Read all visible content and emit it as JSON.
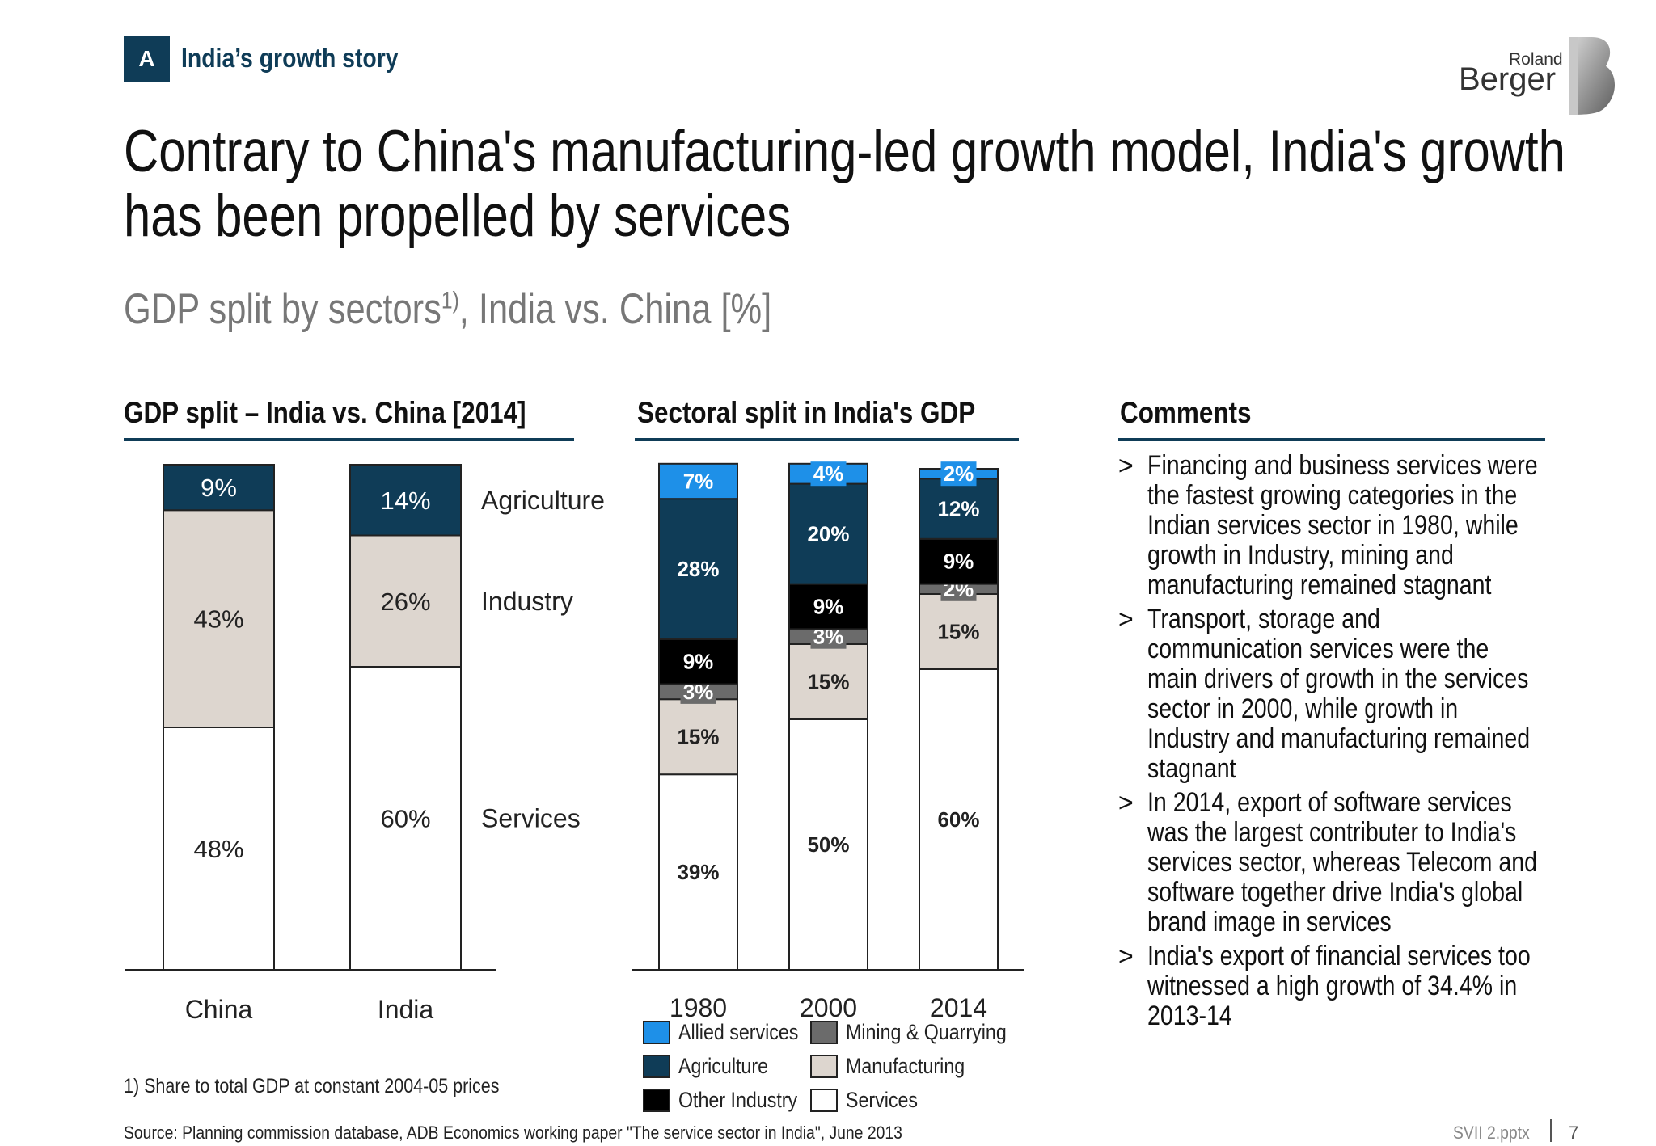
{
  "header": {
    "badge": "A",
    "section_title": "India’s growth story",
    "logo_line1": "Roland",
    "logo_line2": "Berger"
  },
  "main_title": {
    "line1": "Contrary to China's manufacturing-led growth model, India's growth",
    "line2": "has been propelled by services"
  },
  "subtitle": {
    "text": "GDP split by sectors",
    "footnote_ref": "1)",
    "suffix": ", India vs. China [%]"
  },
  "panels": {
    "left_title": "GDP split – India vs. China [2014]",
    "middle_title": "Sectoral split in India's GDP",
    "right_title": "Comments"
  },
  "colors": {
    "allied_services": "#1e90e8",
    "agriculture": "#0f3c57",
    "other_industry": "#000000",
    "mining_quarrying": "#6b6b6b",
    "manufacturing": "#ddd6cf",
    "services": "#ffffff",
    "industry": "#ddd6cf"
  },
  "chart_data": [
    {
      "type": "bar",
      "stacked": true,
      "title": "GDP split – India vs. China [2014]",
      "categories": [
        "China",
        "India"
      ],
      "series": [
        {
          "name": "Services",
          "values": [
            48,
            60
          ],
          "labels": [
            "48%",
            "60%"
          ]
        },
        {
          "name": "Industry",
          "values": [
            43,
            26
          ],
          "labels": [
            "43%",
            "26%"
          ]
        },
        {
          "name": "Agriculture",
          "values": [
            9,
            14
          ],
          "labels": [
            "9%",
            "14%"
          ]
        }
      ]
    },
    {
      "type": "bar",
      "stacked": true,
      "title": "Sectoral split in India's GDP",
      "categories": [
        "1980",
        "2000",
        "2014"
      ],
      "series": [
        {
          "name": "Services",
          "values": [
            39,
            50,
            60
          ],
          "labels": [
            "39%",
            "50%",
            "60%"
          ]
        },
        {
          "name": "Manufacturing",
          "values": [
            15,
            15,
            15
          ],
          "labels": [
            "15%",
            "15%",
            "15%"
          ]
        },
        {
          "name": "Mining & Quarrying",
          "values": [
            3,
            3,
            2
          ],
          "labels": [
            "3%",
            "3%",
            "2%"
          ]
        },
        {
          "name": "Other Industry",
          "values": [
            9,
            9,
            9
          ],
          "labels": [
            "9%",
            "9%",
            "9%"
          ]
        },
        {
          "name": "Agriculture",
          "values": [
            28,
            20,
            12
          ],
          "labels": [
            "28%",
            "20%",
            "12%"
          ]
        },
        {
          "name": "Allied services",
          "values": [
            7,
            4,
            2
          ],
          "labels": [
            "7%",
            "4%",
            "2%"
          ]
        }
      ],
      "legend": [
        "Allied services",
        "Agriculture",
        "Other Industry",
        "Mining & Quarrying",
        "Manufacturing",
        "Services"
      ]
    }
  ],
  "comments": [
    "Financing and business services were the fastest growing categories in the Indian services sector in 1980, while growth in Industry, mining and manufacturing remained stagnant",
    "Transport, storage and communication services were the main drivers of growth in the services sector in 2000, while growth in Industry and manufacturing remained stagnant",
    "In 2014, export of software services was the largest contributer to India's services sector, whereas Telecom and software together drive India's global brand image in services",
    "India's export of financial services too witnessed a high growth of 34.4% in 2013-14"
  ],
  "comment_marker": ">",
  "footnote": "1) Share to total GDP at constant 2004-05  prices",
  "source": "Source:  Planning commission database, ADB Economics working paper \"The service sector in India\", June 2013",
  "footer": {
    "file": "SVII 2.pptx",
    "page": "7"
  }
}
